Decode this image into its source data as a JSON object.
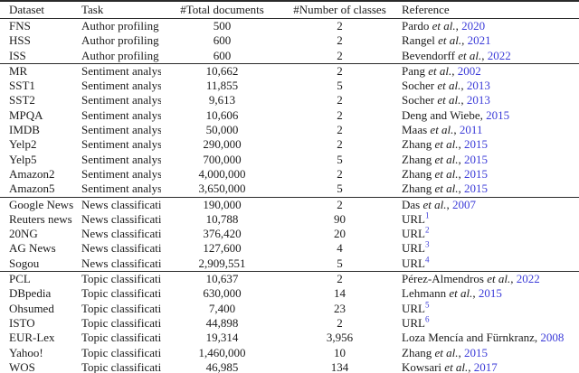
{
  "table": {
    "link_color": "#3b3bd8",
    "columns": [
      {
        "label": "Dataset"
      },
      {
        "label": "Task"
      },
      {
        "label": "#Total documents"
      },
      {
        "label": "#Number of classes"
      },
      {
        "label": "Reference"
      }
    ],
    "groups": [
      {
        "rows": [
          {
            "dataset": "FNS",
            "task": "Author profiling",
            "total_documents": "500",
            "num_classes": "2",
            "reference": {
              "authors": "Pardo",
              "et_al": true,
              "year": "2020"
            }
          },
          {
            "dataset": "HSS",
            "task": "Author profiling",
            "total_documents": "600",
            "num_classes": "2",
            "reference": {
              "authors": "Rangel",
              "et_al": true,
              "year": "2021"
            }
          },
          {
            "dataset": "ISS",
            "task": "Author profiling",
            "total_documents": "600",
            "num_classes": "2",
            "reference": {
              "authors": "Bevendorff",
              "et_al": true,
              "year": "2022"
            }
          }
        ]
      },
      {
        "rows": [
          {
            "dataset": "MR",
            "task": "Sentiment analysis",
            "total_documents": "10,662",
            "num_classes": "2",
            "reference": {
              "authors": "Pang",
              "et_al": true,
              "year": "2002"
            }
          },
          {
            "dataset": "SST1",
            "task": "Sentiment analysis",
            "total_documents": "11,855",
            "num_classes": "5",
            "reference": {
              "authors": "Socher",
              "et_al": true,
              "year": "2013"
            }
          },
          {
            "dataset": "SST2",
            "task": "Sentiment analysis",
            "total_documents": "9,613",
            "num_classes": "2",
            "reference": {
              "authors": "Socher",
              "et_al": true,
              "year": "2013"
            }
          },
          {
            "dataset": "MPQA",
            "task": "Sentiment analysis",
            "total_documents": "10,606",
            "num_classes": "2",
            "reference": {
              "authors": "Deng and Wiebe",
              "et_al": false,
              "year": "2015"
            }
          },
          {
            "dataset": "IMDB",
            "task": "Sentiment analysis",
            "total_documents": "50,000",
            "num_classes": "2",
            "reference": {
              "authors": "Maas",
              "et_al": true,
              "year": "2011"
            }
          },
          {
            "dataset": "Yelp2",
            "task": "Sentiment analysis",
            "total_documents": "290,000",
            "num_classes": "2",
            "reference": {
              "authors": "Zhang",
              "et_al": true,
              "year": "2015"
            }
          },
          {
            "dataset": "Yelp5",
            "task": "Sentiment analysis",
            "total_documents": "700,000",
            "num_classes": "5",
            "reference": {
              "authors": "Zhang",
              "et_al": true,
              "year": "2015"
            }
          },
          {
            "dataset": "Amazon2",
            "task": "Sentiment analysis",
            "total_documents": "4,000,000",
            "num_classes": "2",
            "reference": {
              "authors": "Zhang",
              "et_al": true,
              "year": "2015"
            }
          },
          {
            "dataset": "Amazon5",
            "task": "Sentiment analysis",
            "total_documents": "3,650,000",
            "num_classes": "5",
            "reference": {
              "authors": "Zhang",
              "et_al": true,
              "year": "2015"
            }
          }
        ]
      },
      {
        "rows": [
          {
            "dataset": "Google News",
            "task": "News classification",
            "total_documents": "190,000",
            "num_classes": "2",
            "reference": {
              "authors": "Das",
              "et_al": true,
              "year": "2007"
            }
          },
          {
            "dataset": "Reuters news",
            "task": "News classification",
            "total_documents": "10,788",
            "num_classes": "90",
            "reference": {
              "url_label": "URL",
              "sup": "1"
            }
          },
          {
            "dataset": "20NG",
            "task": "News classification",
            "total_documents": "376,420",
            "num_classes": "20",
            "reference": {
              "url_label": "URL",
              "sup": "2"
            }
          },
          {
            "dataset": "AG News",
            "task": "News classification",
            "total_documents": "127,600",
            "num_classes": "4",
            "reference": {
              "url_label": "URL",
              "sup": "3"
            }
          },
          {
            "dataset": "Sogou",
            "task": "News classification",
            "total_documents": "2,909,551",
            "num_classes": "5",
            "reference": {
              "url_label": "URL",
              "sup": "4"
            }
          }
        ]
      },
      {
        "rows": [
          {
            "dataset": "PCL",
            "task": "Topic classification",
            "total_documents": "10,637",
            "num_classes": "2",
            "reference": {
              "authors": "Pérez-Almendros",
              "et_al": true,
              "year": "2022"
            }
          },
          {
            "dataset": "DBpedia",
            "task": "Topic classification",
            "total_documents": "630,000",
            "num_classes": "14",
            "reference": {
              "authors": "Lehmann",
              "et_al": true,
              "year": "2015"
            }
          },
          {
            "dataset": "Ohsumed",
            "task": "Topic classification",
            "total_documents": "7,400",
            "num_classes": "23",
            "reference": {
              "url_label": "URL",
              "sup": "5"
            }
          },
          {
            "dataset": "ISTO",
            "task": "Topic classification",
            "total_documents": "44,898",
            "num_classes": "2",
            "reference": {
              "url_label": "URL",
              "sup": "6"
            }
          },
          {
            "dataset": "EUR-Lex",
            "task": "Topic classification",
            "total_documents": "19,314",
            "num_classes": "3,956",
            "reference": {
              "authors": "Loza Mencía and Fürnkranz",
              "et_al": false,
              "year": "2008"
            }
          },
          {
            "dataset": "Yahoo!",
            "task": "Topic classification",
            "total_documents": "1,460,000",
            "num_classes": "10",
            "reference": {
              "authors": "Zhang",
              "et_al": true,
              "year": "2015"
            }
          },
          {
            "dataset": "WOS",
            "task": "Topic classification",
            "total_documents": "46,985",
            "num_classes": "134",
            "reference": {
              "authors": "Kowsari",
              "et_al": true,
              "year": "2017"
            }
          }
        ]
      }
    ]
  }
}
